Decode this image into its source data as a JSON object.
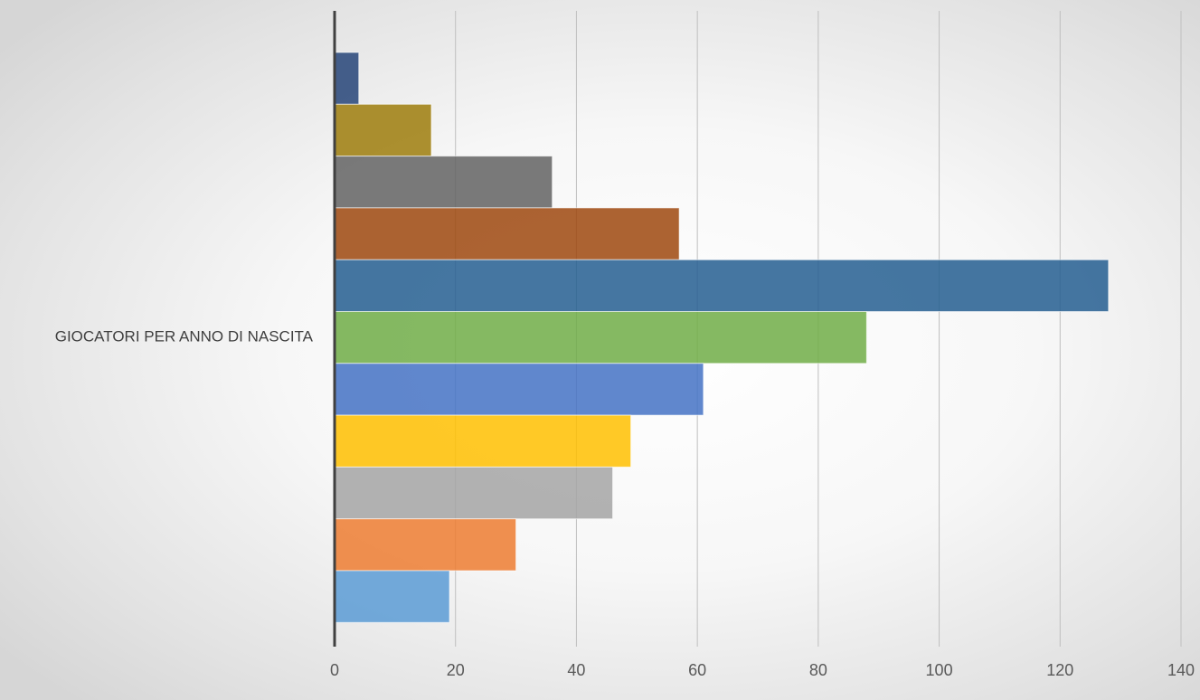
{
  "chart_data": {
    "type": "bar",
    "orientation": "horizontal",
    "categories": [
      "GIOCATORI PER ANNO DI NASCITA"
    ],
    "series": [
      {
        "values": [
          4
        ],
        "color": "#264478"
      },
      {
        "values": [
          16
        ],
        "color": "#9E7C0C"
      },
      {
        "values": [
          36
        ],
        "color": "#636363"
      },
      {
        "values": [
          57
        ],
        "color": "#9E480E"
      },
      {
        "values": [
          128
        ],
        "color": "#255E91"
      },
      {
        "values": [
          88
        ],
        "color": "#70AD47"
      },
      {
        "values": [
          61
        ],
        "color": "#4472C4"
      },
      {
        "values": [
          49
        ],
        "color": "#FFC000"
      },
      {
        "values": [
          46
        ],
        "color": "#A5A5A5"
      },
      {
        "values": [
          30
        ],
        "color": "#ED7D31"
      },
      {
        "values": [
          19
        ],
        "color": "#5B9BD5"
      }
    ],
    "xlim": [
      0,
      140
    ],
    "xticks": [
      "0",
      "20",
      "40",
      "60",
      "80",
      "100",
      "120",
      "140"
    ],
    "title": "",
    "xlabel": "",
    "ylabel": "",
    "grid": "vertical",
    "legend": "none"
  }
}
